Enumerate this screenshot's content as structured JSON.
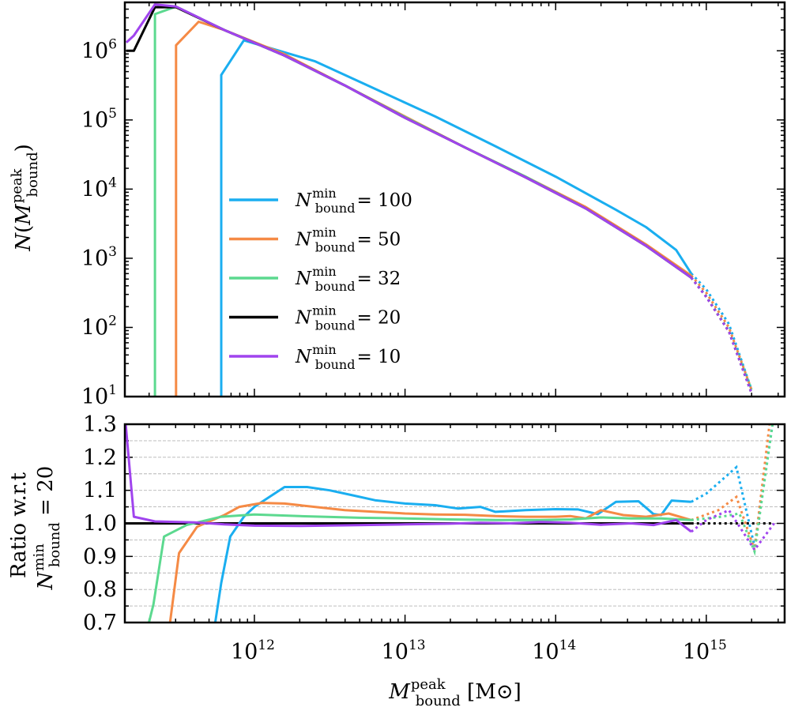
{
  "chart_data": [
    {
      "type": "line",
      "panel": "top",
      "yscale": "log",
      "xscale": "log",
      "ylabel": "N(M_bound^peak)",
      "ylim_log10": [
        1,
        6.7
      ],
      "xlim_log10": [
        11.14,
        15.52
      ],
      "yticks": [
        {
          "exp": 1,
          "base": "10",
          "sup": "1"
        },
        {
          "exp": 2,
          "base": "10",
          "sup": "2"
        },
        {
          "exp": 3,
          "base": "10",
          "sup": "3"
        },
        {
          "exp": 4,
          "base": "10",
          "sup": "4"
        },
        {
          "exp": 5,
          "base": "10",
          "sup": "5"
        },
        {
          "exp": 6,
          "base": "10",
          "sup": "6"
        }
      ],
      "legend": {
        "placement": "center-left",
        "entries": [
          {
            "series": "N100",
            "symbol": "N",
            "sup": "min",
            "sub": "bound",
            "rhs": "= 100"
          },
          {
            "series": "N50",
            "symbol": "N",
            "sup": "min",
            "sub": "bound",
            "rhs": "= 50"
          },
          {
            "series": "N32",
            "symbol": "N",
            "sup": "min",
            "sub": "bound",
            "rhs": "= 32"
          },
          {
            "series": "N20",
            "symbol": "N",
            "sup": "min",
            "sub": "bound",
            "rhs": "= 20"
          },
          {
            "series": "N10",
            "symbol": "N",
            "sup": "min",
            "sub": "bound",
            "rhs": "= 10"
          }
        ]
      },
      "series": [
        {
          "name": "N100",
          "color": "#1aaef0",
          "solid": [
            [
              11.78,
              1
            ],
            [
              11.78,
              5.65
            ],
            [
              11.93,
              6.15
            ],
            [
              12.4,
              5.85
            ],
            [
              12.8,
              5.45
            ],
            [
              13.2,
              5.05
            ],
            [
              13.6,
              4.62
            ],
            [
              14.0,
              4.18
            ],
            [
              14.4,
              3.7
            ],
            [
              14.6,
              3.45
            ],
            [
              14.8,
              3.12
            ],
            [
              14.9,
              2.78
            ]
          ],
          "dotted": [
            [
              14.9,
              2.78
            ],
            [
              15.0,
              2.55
            ],
            [
              15.15,
              2.05
            ],
            [
              15.3,
              1.1
            ]
          ]
        },
        {
          "name": "N50",
          "color": "#f58a45",
          "solid": [
            [
              11.48,
              1
            ],
            [
              11.48,
              6.08
            ],
            [
              11.63,
              6.42
            ],
            [
              11.8,
              6.3
            ],
            [
              12.2,
              5.95
            ],
            [
              12.6,
              5.5
            ],
            [
              13.0,
              5.05
            ],
            [
              13.4,
              4.6
            ],
            [
              13.8,
              4.18
            ],
            [
              14.2,
              3.74
            ],
            [
              14.6,
              3.2
            ],
            [
              14.9,
              2.75
            ]
          ],
          "dotted": [
            [
              14.9,
              2.75
            ],
            [
              15.0,
              2.5
            ],
            [
              15.15,
              2.0
            ],
            [
              15.3,
              1.1
            ]
          ]
        },
        {
          "name": "N32",
          "color": "#5cd98f",
          "solid": [
            [
              11.34,
              1
            ],
            [
              11.34,
              6.53
            ],
            [
              11.48,
              6.64
            ],
            [
              11.8,
              6.3
            ],
            [
              12.2,
              5.93
            ],
            [
              12.6,
              5.5
            ],
            [
              13.0,
              5.04
            ],
            [
              13.4,
              4.6
            ],
            [
              13.8,
              4.18
            ],
            [
              14.2,
              3.72
            ],
            [
              14.6,
              3.18
            ],
            [
              14.9,
              2.72
            ]
          ],
          "dotted": [
            [
              14.9,
              2.72
            ],
            [
              15.0,
              2.45
            ],
            [
              15.15,
              1.95
            ],
            [
              15.3,
              1.1
            ]
          ]
        },
        {
          "name": "N20",
          "color": "#000000",
          "solid": [
            [
              11.15,
              6.0
            ],
            [
              11.2,
              6.0
            ],
            [
              11.34,
              6.63
            ],
            [
              11.48,
              6.63
            ],
            [
              11.8,
              6.3
            ],
            [
              12.2,
              5.93
            ],
            [
              12.6,
              5.5
            ],
            [
              13.0,
              5.03
            ],
            [
              13.4,
              4.6
            ],
            [
              13.8,
              4.17
            ],
            [
              14.2,
              3.72
            ],
            [
              14.6,
              3.18
            ],
            [
              14.9,
              2.72
            ]
          ],
          "dotted": [
            [
              14.9,
              2.72
            ],
            [
              15.0,
              2.44
            ],
            [
              15.15,
              1.94
            ],
            [
              15.3,
              1.05
            ]
          ]
        },
        {
          "name": "N10",
          "color": "#a044ee",
          "solid": [
            [
              11.15,
              6.12
            ],
            [
              11.2,
              6.22
            ],
            [
              11.34,
              6.67
            ],
            [
              11.48,
              6.64
            ],
            [
              11.8,
              6.3
            ],
            [
              12.2,
              5.93
            ],
            [
              12.6,
              5.5
            ],
            [
              13.0,
              5.03
            ],
            [
              13.4,
              4.6
            ],
            [
              13.8,
              4.17
            ],
            [
              14.2,
              3.72
            ],
            [
              14.6,
              3.18
            ],
            [
              14.9,
              2.72
            ]
          ],
          "dotted": [
            [
              14.9,
              2.72
            ],
            [
              15.0,
              2.44
            ],
            [
              15.15,
              1.94
            ],
            [
              15.3,
              1.05
            ]
          ]
        }
      ]
    },
    {
      "type": "line",
      "panel": "bottom",
      "yscale": "linear",
      "xscale": "log",
      "ylabel_line1": "Ratio w.r.t",
      "ylabel_line2": "N_bound^min = 20",
      "ylim": [
        0.7,
        1.3
      ],
      "xlim_log10": [
        11.14,
        15.52
      ],
      "grid": "horizontal-dashed",
      "yticks": [
        "0.7",
        "0.8",
        "0.9",
        "1.0",
        "1.1",
        "1.2",
        "1.3"
      ],
      "xticks": [
        {
          "exp": 12,
          "base": "10",
          "sup": "12"
        },
        {
          "exp": 13,
          "base": "10",
          "sup": "13"
        },
        {
          "exp": 14,
          "base": "10",
          "sup": "14"
        },
        {
          "exp": 15,
          "base": "10",
          "sup": "15"
        }
      ],
      "xlabel": {
        "symbol": "M",
        "sup": "peak",
        "sub": "bound",
        "unit": "[M⊙]"
      },
      "series": [
        {
          "name": "N100",
          "color": "#1aaef0",
          "solid": [
            [
              11.74,
              0.7
            ],
            [
              11.78,
              0.82
            ],
            [
              11.84,
              0.96
            ],
            [
              11.93,
              1.02
            ],
            [
              12.0,
              1.05
            ],
            [
              12.1,
              1.08
            ],
            [
              12.2,
              1.11
            ],
            [
              12.35,
              1.11
            ],
            [
              12.5,
              1.1
            ],
            [
              12.65,
              1.085
            ],
            [
              12.8,
              1.07
            ],
            [
              13.0,
              1.06
            ],
            [
              13.2,
              1.055
            ],
            [
              13.35,
              1.045
            ],
            [
              13.5,
              1.05
            ],
            [
              13.6,
              1.035
            ],
            [
              13.8,
              1.04
            ],
            [
              14.0,
              1.043
            ],
            [
              14.15,
              1.042
            ],
            [
              14.28,
              1.028
            ],
            [
              14.4,
              1.065
            ],
            [
              14.55,
              1.067
            ],
            [
              14.65,
              1.028
            ],
            [
              14.7,
              1.025
            ],
            [
              14.77,
              1.069
            ],
            [
              14.9,
              1.065
            ]
          ],
          "dotted": [
            [
              14.9,
              1.065
            ],
            [
              15.0,
              1.09
            ],
            [
              15.2,
              1.17
            ],
            [
              15.32,
              0.93
            ],
            [
              15.44,
              1.3
            ]
          ]
        },
        {
          "name": "N50",
          "color": "#f58a45",
          "solid": [
            [
              11.44,
              0.7
            ],
            [
              11.5,
              0.91
            ],
            [
              11.62,
              0.99
            ],
            [
              11.8,
              1.025
            ],
            [
              11.9,
              1.05
            ],
            [
              12.05,
              1.062
            ],
            [
              12.2,
              1.06
            ],
            [
              12.4,
              1.05
            ],
            [
              12.6,
              1.04
            ],
            [
              12.8,
              1.035
            ],
            [
              13.0,
              1.03
            ],
            [
              13.2,
              1.027
            ],
            [
              13.4,
              1.026
            ],
            [
              13.6,
              1.022
            ],
            [
              13.8,
              1.02
            ],
            [
              14.0,
              1.02
            ],
            [
              14.1,
              1.022
            ],
            [
              14.2,
              1.015
            ],
            [
              14.3,
              1.04
            ],
            [
              14.45,
              1.025
            ],
            [
              14.6,
              1.02
            ],
            [
              14.75,
              1.03
            ],
            [
              14.9,
              1.01
            ]
          ],
          "dotted": [
            [
              14.9,
              1.01
            ],
            [
              15.08,
              1.04
            ],
            [
              15.2,
              1.08
            ],
            [
              15.32,
              0.92
            ],
            [
              15.42,
              1.3
            ]
          ]
        },
        {
          "name": "N32",
          "color": "#5cd98f",
          "solid": [
            [
              11.3,
              0.7
            ],
            [
              11.33,
              0.755
            ],
            [
              11.4,
              0.96
            ],
            [
              11.55,
              0.995
            ],
            [
              11.78,
              1.02
            ],
            [
              12.0,
              1.027
            ],
            [
              12.3,
              1.022
            ],
            [
              12.7,
              1.017
            ],
            [
              13.0,
              1.015
            ],
            [
              13.3,
              1.012
            ],
            [
              13.6,
              1.01
            ],
            [
              13.9,
              1.01
            ],
            [
              14.1,
              1.012
            ],
            [
              14.3,
              1.018
            ],
            [
              14.5,
              1.015
            ],
            [
              14.7,
              1.015
            ],
            [
              14.9,
              1.01
            ]
          ],
          "dotted": [
            [
              14.9,
              1.01
            ],
            [
              15.1,
              1.02
            ],
            [
              15.22,
              1.03
            ],
            [
              15.32,
              0.915
            ],
            [
              15.44,
              1.3
            ]
          ]
        },
        {
          "name": "N20",
          "color": "#000000",
          "solid": [
            [
              11.14,
              1.0
            ],
            [
              14.9,
              1.0
            ]
          ],
          "dotted": [
            [
              14.9,
              1.0
            ],
            [
              15.45,
              1.0
            ]
          ]
        },
        {
          "name": "N10",
          "color": "#a044ee",
          "solid": [
            [
              11.14,
              1.33
            ],
            [
              11.2,
              1.02
            ],
            [
              11.34,
              1.006
            ],
            [
              11.6,
              1.003
            ],
            [
              11.8,
              0.997
            ],
            [
              12.0,
              0.993
            ],
            [
              12.3,
              0.992
            ],
            [
              12.6,
              0.994
            ],
            [
              13.0,
              0.997
            ],
            [
              13.3,
              0.999
            ],
            [
              13.5,
              1.002
            ],
            [
              13.7,
              1.0
            ],
            [
              13.9,
              1.004
            ],
            [
              14.1,
              1.002
            ],
            [
              14.3,
              0.996
            ],
            [
              14.5,
              1.0
            ],
            [
              14.65,
              0.995
            ],
            [
              14.8,
              1.01
            ],
            [
              14.9,
              0.975
            ]
          ],
          "dotted": [
            [
              14.9,
              0.975
            ],
            [
              15.0,
              1.01
            ],
            [
              15.15,
              1.04
            ],
            [
              15.32,
              0.92
            ],
            [
              15.45,
              1.0
            ]
          ]
        }
      ]
    }
  ]
}
